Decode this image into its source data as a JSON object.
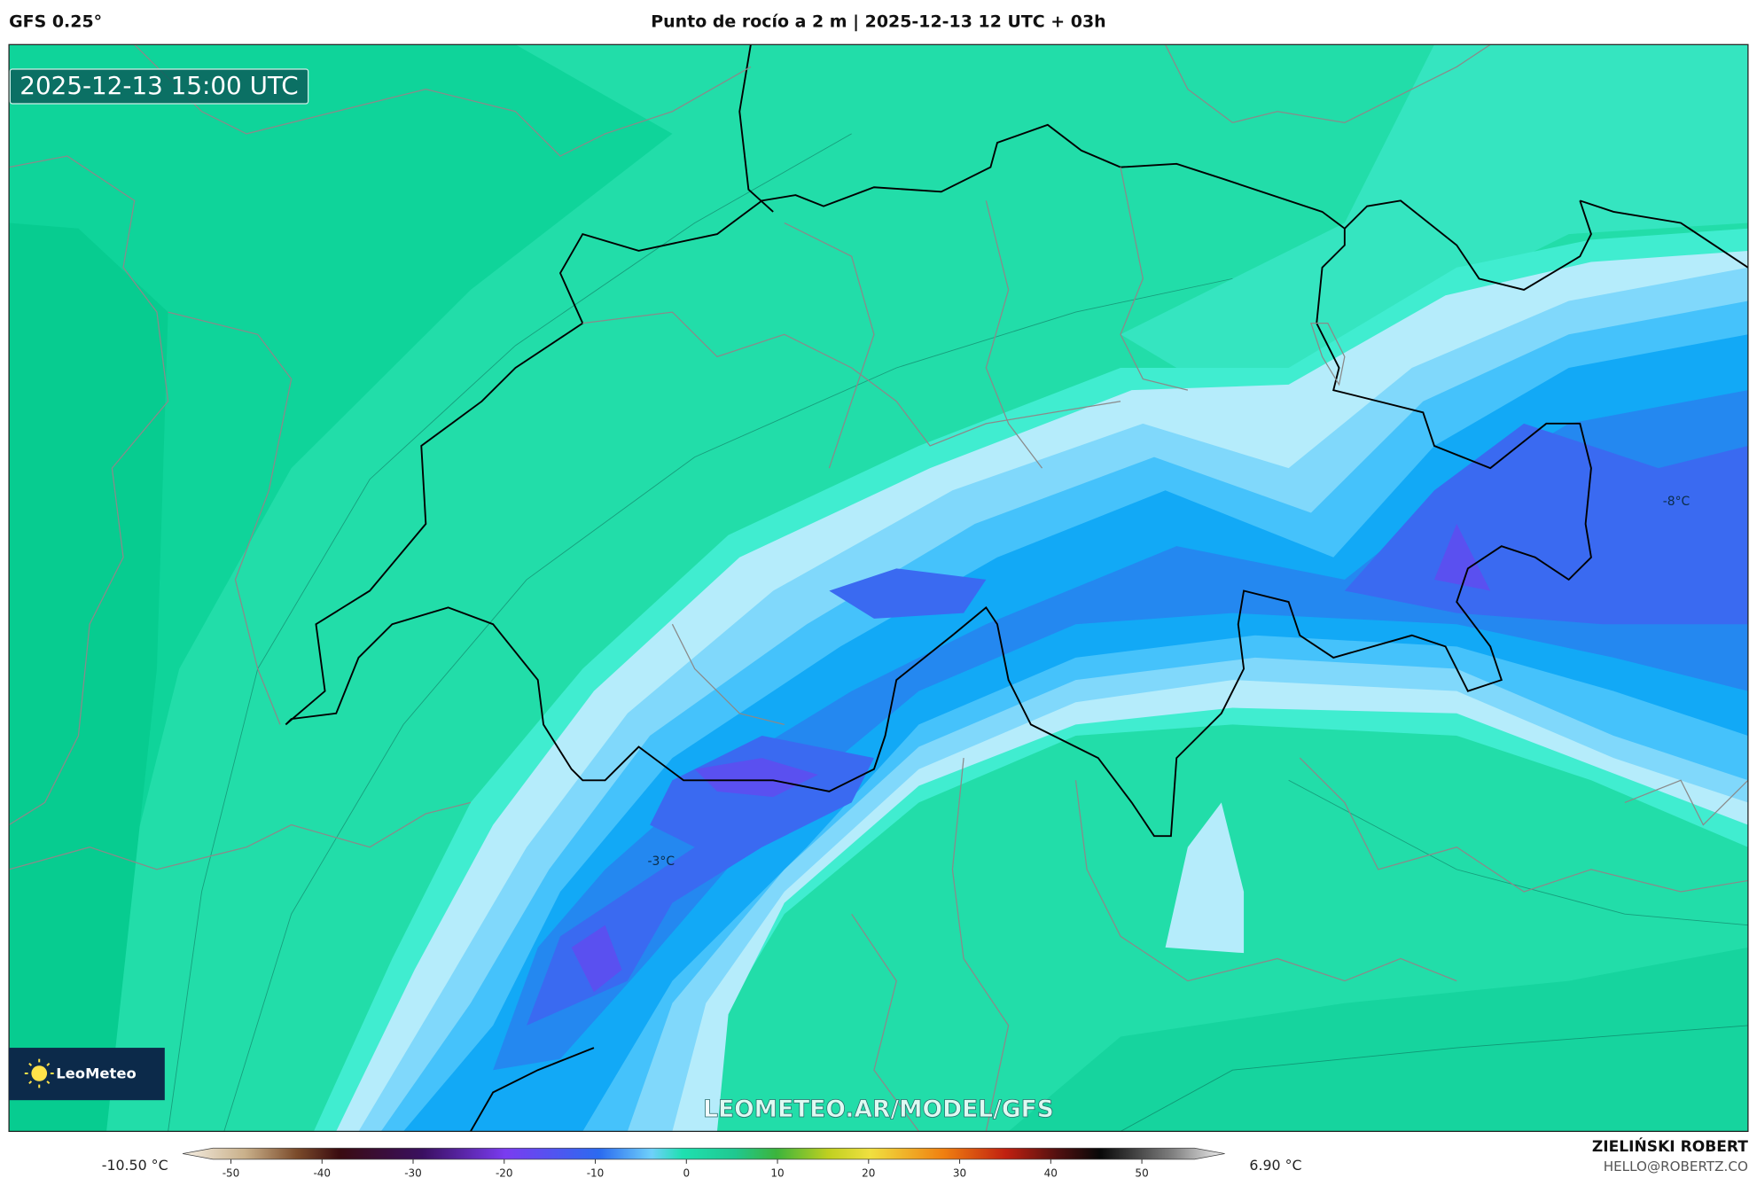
{
  "header": {
    "model": "GFS 0.25°",
    "title": "Punto de rocío a 2 m | 2025-12-13 12 UTC + 03h"
  },
  "map": {
    "valid_time": "2025-12-13 15:00 UTC",
    "labels": [
      "-3°C",
      "-8°C"
    ],
    "logo": "LeoMeteo",
    "watermark": "LEOMETEO.AR/MODEL/GFS"
  },
  "colorbar": {
    "min_label": "-10.50 °C",
    "max_label": "6.90 °C",
    "xlim": [
      -55.3,
      59.1
    ],
    "ticks": [
      -50,
      -40,
      -30,
      -20,
      -10,
      0,
      10,
      20,
      30,
      40,
      50
    ]
  },
  "credits": {
    "author": "ZIELIŃSKI ROBERT",
    "email": "HELLO@ROBERTZ.CO"
  }
}
